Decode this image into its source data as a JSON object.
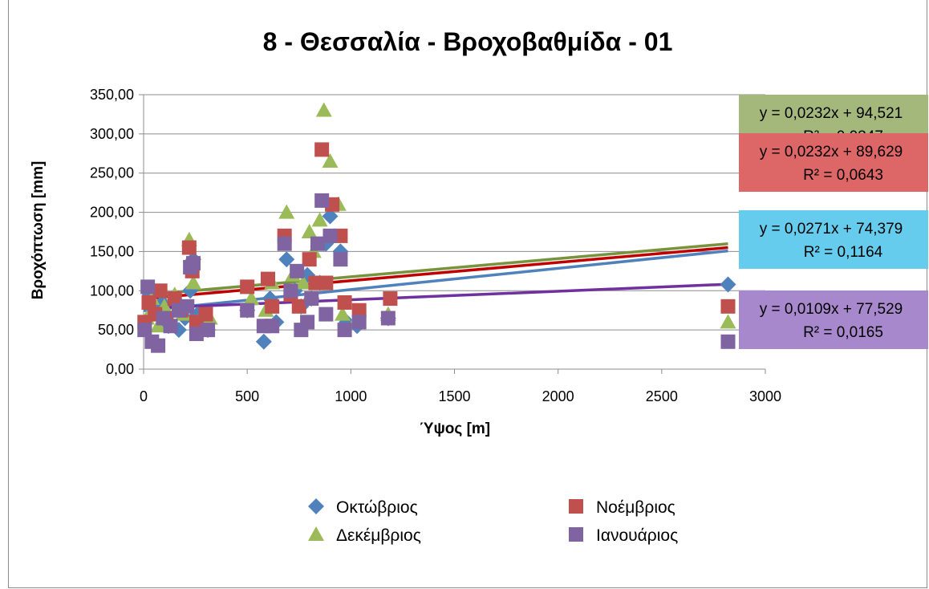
{
  "chart_data": {
    "type": "scatter",
    "title": "8 - Θεσσαλία - Βροχοβαθμίδα - 01",
    "xlabel": "Ύψος [m]",
    "ylabel": "Βροχόπτωση [mm]",
    "xlim": [
      0,
      3000
    ],
    "ylim": [
      0,
      350
    ],
    "x_ticks": [
      "0",
      "500",
      "1000",
      "1500",
      "2000",
      "2500",
      "3000"
    ],
    "y_ticks": [
      "0,00",
      "50,00",
      "100,00",
      "150,00",
      "200,00",
      "250,00",
      "300,00",
      "350,00"
    ],
    "grid": "horizontal",
    "legend_position": "bottom",
    "series": [
      {
        "name": "Οκτώβριος",
        "marker": "diamond",
        "color": "#4f81bd",
        "trend_color": "#4f81bd",
        "trend": {
          "slope": 0.0271,
          "intercept": 74.379
        },
        "equation": "y = 0,0271x + 74,379",
        "r2": "R² = 0,1164",
        "label_bg": "#66ccee",
        "points": [
          [
            10,
            60
          ],
          [
            30,
            95
          ],
          [
            60,
            75
          ],
          [
            90,
            85
          ],
          [
            120,
            55
          ],
          [
            170,
            50
          ],
          [
            200,
            65
          ],
          [
            225,
            100
          ],
          [
            240,
            140
          ],
          [
            260,
            70
          ],
          [
            310,
            50
          ],
          [
            500,
            75
          ],
          [
            580,
            35
          ],
          [
            610,
            90
          ],
          [
            640,
            60
          ],
          [
            690,
            140
          ],
          [
            730,
            100
          ],
          [
            760,
            80
          ],
          [
            790,
            120
          ],
          [
            810,
            90
          ],
          [
            850,
            110
          ],
          [
            880,
            160
          ],
          [
            900,
            195
          ],
          [
            950,
            150
          ],
          [
            980,
            60
          ],
          [
            1030,
            55
          ],
          [
            1180,
            65
          ],
          [
            2820,
            108
          ]
        ]
      },
      {
        "name": "Νοέμβριος",
        "marker": "square",
        "color": "#c0504d",
        "trend_color": "#c00000",
        "trend": {
          "slope": 0.0232,
          "intercept": 89.629
        },
        "equation": "y = 0,0232x + 89,629",
        "r2": "R² = 0,0643",
        "label_bg": "#dd6666",
        "points": [
          [
            5,
            60
          ],
          [
            25,
            85
          ],
          [
            55,
            70
          ],
          [
            80,
            100
          ],
          [
            110,
            65
          ],
          [
            150,
            90
          ],
          [
            180,
            75
          ],
          [
            220,
            155
          ],
          [
            235,
            125
          ],
          [
            255,
            60
          ],
          [
            300,
            70
          ],
          [
            500,
            105
          ],
          [
            600,
            115
          ],
          [
            620,
            80
          ],
          [
            680,
            170
          ],
          [
            710,
            95
          ],
          [
            750,
            80
          ],
          [
            800,
            140
          ],
          [
            830,
            110
          ],
          [
            860,
            280
          ],
          [
            880,
            110
          ],
          [
            910,
            210
          ],
          [
            950,
            170
          ],
          [
            970,
            85
          ],
          [
            1040,
            75
          ],
          [
            1190,
            90
          ],
          [
            2820,
            80
          ]
        ]
      },
      {
        "name": "Δεκέμβριος",
        "marker": "triangle",
        "color": "#9bbb59",
        "trend_color": "#77933c",
        "trend": {
          "slope": 0.0232,
          "intercept": 94.521
        },
        "equation": "y = 0,0232x + 94,521",
        "r2": "R² = 0,0347",
        "label_bg": "#a4b87c",
        "points": [
          [
            15,
            65
          ],
          [
            40,
            90
          ],
          [
            70,
            55
          ],
          [
            100,
            80
          ],
          [
            150,
            95
          ],
          [
            190,
            70
          ],
          [
            220,
            165
          ],
          [
            240,
            110
          ],
          [
            260,
            60
          ],
          [
            320,
            65
          ],
          [
            520,
            90
          ],
          [
            590,
            75
          ],
          [
            620,
            110
          ],
          [
            690,
            200
          ],
          [
            720,
            120
          ],
          [
            770,
            110
          ],
          [
            800,
            175
          ],
          [
            820,
            150
          ],
          [
            850,
            190
          ],
          [
            870,
            330
          ],
          [
            900,
            265
          ],
          [
            940,
            210
          ],
          [
            960,
            70
          ],
          [
            1020,
            60
          ],
          [
            1180,
            70
          ],
          [
            2820,
            60
          ]
        ]
      },
      {
        "name": "Ιανουάριος",
        "marker": "square",
        "color": "#8064a2",
        "trend_color": "#7030a0",
        "trend": {
          "slope": 0.0109,
          "intercept": 77.529
        },
        "equation": "y = 0,0109x + 77,529",
        "r2": "R² = 0,0165",
        "label_bg": "#a888cc",
        "points": [
          [
            5,
            50
          ],
          [
            20,
            105
          ],
          [
            40,
            35
          ],
          [
            70,
            30
          ],
          [
            95,
            65
          ],
          [
            130,
            55
          ],
          [
            170,
            75
          ],
          [
            210,
            80
          ],
          [
            225,
            130
          ],
          [
            240,
            135
          ],
          [
            255,
            45
          ],
          [
            310,
            50
          ],
          [
            500,
            75
          ],
          [
            580,
            55
          ],
          [
            620,
            55
          ],
          [
            680,
            160
          ],
          [
            710,
            100
          ],
          [
            740,
            125
          ],
          [
            760,
            50
          ],
          [
            790,
            60
          ],
          [
            810,
            90
          ],
          [
            840,
            160
          ],
          [
            860,
            215
          ],
          [
            880,
            70
          ],
          [
            900,
            170
          ],
          [
            950,
            140
          ],
          [
            970,
            50
          ],
          [
            1040,
            60
          ],
          [
            1180,
            65
          ],
          [
            2820,
            35
          ]
        ]
      }
    ]
  }
}
